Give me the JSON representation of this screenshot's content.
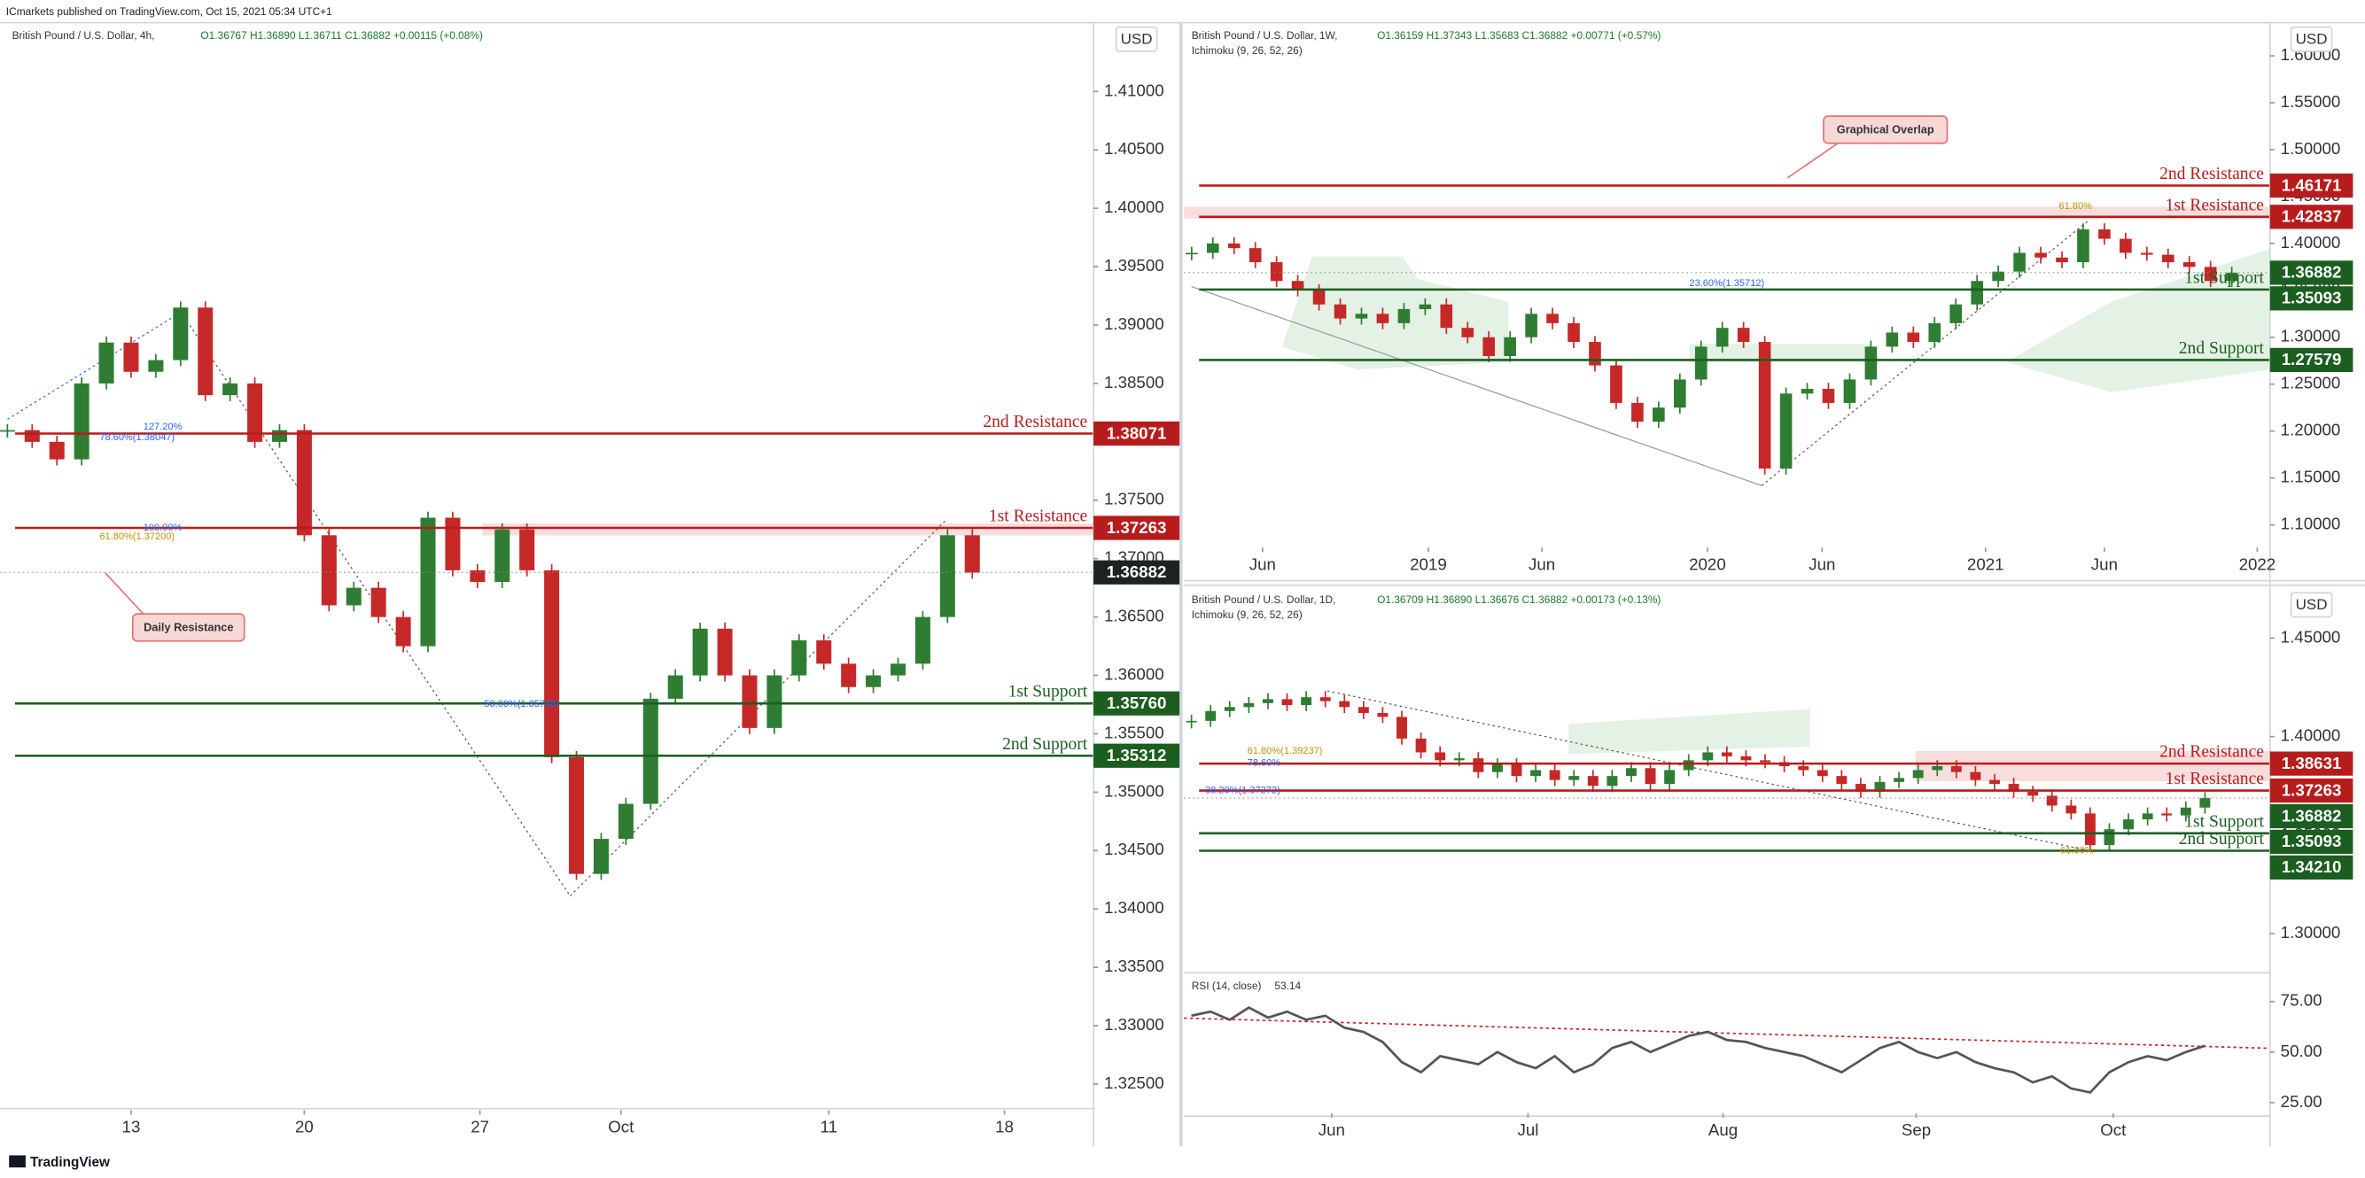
{
  "header": {
    "publisher": "ICmarkets published on TradingView.com, Oct 15, 2021 05:34 UTC+1"
  },
  "footer": {
    "brand": "TradingView"
  },
  "chart_data": [
    {
      "type": "candlestick",
      "title": "British Pound / U.S. Dollar, 4h,",
      "ohlc": "O1.36767 H1.36890 L1.36711 C1.36882 +0.00115 (+0.08%)",
      "currency": "USD",
      "up_color": "#2e7d32",
      "down_color": "#c62828",
      "values": [
        1.381,
        1.38,
        1.3785,
        1.385,
        1.3885,
        1.386,
        1.387,
        1.3915,
        1.384,
        1.385,
        1.38,
        1.381,
        1.372,
        1.366,
        1.3675,
        1.365,
        1.3625,
        1.3735,
        1.369,
        1.368,
        1.3725,
        1.369,
        1.353,
        1.343,
        1.346,
        1.349,
        1.358,
        1.36,
        1.364,
        1.36,
        1.3555,
        1.36,
        1.363,
        1.361,
        1.359,
        1.36,
        1.361,
        1.365,
        1.372,
        1.3688
      ],
      "xlim": [
        -0.3,
        43.9
      ],
      "xticks": [
        {
          "value": 5,
          "label": "13"
        },
        {
          "value": 12,
          "label": "20"
        },
        {
          "value": 19.1,
          "label": "27"
        },
        {
          "value": 24.8,
          "label": "Oct"
        },
        {
          "value": 33.2,
          "label": "11"
        },
        {
          "value": 40.3,
          "label": "18"
        }
      ],
      "ylim": [
        1.3229,
        1.4159
      ],
      "yticks": [
        {
          "value": 1.41,
          "label": "1.41000"
        },
        {
          "value": 1.405,
          "label": "1.40500"
        },
        {
          "value": 1.4,
          "label": "1.40000"
        },
        {
          "value": 1.395,
          "label": "1.39500"
        },
        {
          "value": 1.39,
          "label": "1.39000"
        },
        {
          "value": 1.385,
          "label": "1.38500"
        },
        {
          "value": 1.375,
          "label": "1.37500"
        },
        {
          "value": 1.37,
          "label": "1.37000"
        },
        {
          "value": 1.365,
          "label": "1.36500"
        },
        {
          "value": 1.36,
          "label": "1.36000"
        },
        {
          "value": 1.355,
          "label": "1.35500"
        },
        {
          "value": 1.35,
          "label": "1.35000"
        },
        {
          "value": 1.345,
          "label": "1.34500"
        },
        {
          "value": 1.34,
          "label": "1.34000"
        },
        {
          "value": 1.335,
          "label": "1.33500"
        },
        {
          "value": 1.33,
          "label": "1.33000"
        },
        {
          "value": 1.325,
          "label": "1.32500"
        }
      ],
      "levels": [
        {
          "label": "2nd Resistance",
          "value": 1.38071,
          "price_label": "1.38071",
          "color": "#b71c1c"
        },
        {
          "label": "1st Resistance",
          "value": 1.37263,
          "price_label": "1.37263",
          "color": "#b71c1c"
        },
        {
          "label": "1st Support",
          "value": 1.3576,
          "price_label": "1.35760",
          "color": "#1b5e20"
        },
        {
          "label": "2nd Support",
          "value": 1.35312,
          "price_label": "1.35312",
          "color": "#1b5e20"
        }
      ],
      "last": {
        "value": 1.36882,
        "label": "1.36882",
        "color": "#1c2420"
      },
      "annotations": [
        "127.20%",
        "78.60%(1.38047)",
        "100.00%",
        "61.80%(1.37200)",
        "50.00%(1.35748)",
        "Daily Resistance"
      ]
    },
    {
      "type": "candlestick",
      "title": "British Pound / U.S. Dollar, 1W,",
      "ohlc": "O1.36159 H1.37343 L1.35683 C1.36882 +0.00771 (+0.57%)",
      "indicator": "Ichimoku (9, 26, 52, 26)",
      "currency": "USD",
      "up_color": "#2e7d32",
      "down_color": "#c62828",
      "values": [
        1.39,
        1.4,
        1.395,
        1.38,
        1.36,
        1.35,
        1.335,
        1.32,
        1.325,
        1.315,
        1.33,
        1.335,
        1.31,
        1.3,
        1.28,
        1.3,
        1.325,
        1.315,
        1.295,
        1.27,
        1.23,
        1.21,
        1.225,
        1.255,
        1.29,
        1.31,
        1.295,
        1.16,
        1.24,
        1.245,
        1.23,
        1.255,
        1.29,
        1.305,
        1.295,
        1.315,
        1.335,
        1.36,
        1.37,
        1.39,
        1.385,
        1.38,
        1.415,
        1.405,
        1.39,
        1.388,
        1.38,
        1.375,
        1.36,
        1.3688
      ],
      "xlim": [
        -0.36,
        50.8
      ],
      "xticks": [
        {
          "value": 3.34,
          "label": "Jun"
        },
        {
          "value": 11.15,
          "label": "2019"
        },
        {
          "value": 16.5,
          "label": "Jun"
        },
        {
          "value": 24.3,
          "label": "2020"
        },
        {
          "value": 29.7,
          "label": "Jun"
        },
        {
          "value": 37.4,
          "label": "2021"
        },
        {
          "value": 43,
          "label": "Jun"
        },
        {
          "value": 50.2,
          "label": "2022"
        }
      ],
      "ylim": [
        1.0405,
        1.6354
      ],
      "yticks": [
        {
          "value": 1.6,
          "label": "1.60000"
        },
        {
          "value": 1.55,
          "label": "1.55000"
        },
        {
          "value": 1.5,
          "label": "1.50000"
        },
        {
          "value": 1.45,
          "label": "1.45000"
        },
        {
          "value": 1.4,
          "label": "1.40000"
        },
        {
          "value": 1.35,
          "label": "1.35000"
        },
        {
          "value": 1.3,
          "label": "1.30000"
        },
        {
          "value": 1.25,
          "label": "1.25000"
        },
        {
          "value": 1.2,
          "label": "1.20000"
        },
        {
          "value": 1.15,
          "label": "1.15000"
        },
        {
          "value": 1.1,
          "label": "1.10000"
        }
      ],
      "levels": [
        {
          "label": "2nd Resistance",
          "value": 1.46171,
          "price_label": "1.46171",
          "color": "#b71c1c"
        },
        {
          "label": "1st Resistance",
          "value": 1.42837,
          "price_label": "1.42837",
          "color": "#b71c1c"
        },
        {
          "label": "1st Support",
          "value": 1.35093,
          "price_label": "1.35093",
          "color": "#1b5e20"
        },
        {
          "label": "2nd Support",
          "value": 1.27579,
          "price_label": "1.27579",
          "color": "#1b5e20"
        }
      ],
      "last": {
        "value": 1.36882,
        "label": "1.36882",
        "color": "#1b5e20"
      },
      "annotations": [
        "Graphical Overlap",
        "61.80%",
        "23.60%(1.35712)"
      ]
    },
    {
      "type": "candlestick",
      "title": "British Pound / U.S. Dollar, 1D,",
      "ohlc": "O1.36709 H1.36890 L1.36676 C1.36882 +0.00173 (+0.13%)",
      "indicator": "Ichimoku (9, 26, 52, 26)",
      "currency": "USD",
      "up_color": "#2e7d32",
      "down_color": "#c62828",
      "values": [
        1.408,
        1.413,
        1.415,
        1.417,
        1.419,
        1.416,
        1.42,
        1.418,
        1.415,
        1.412,
        1.41,
        1.399,
        1.392,
        1.388,
        1.389,
        1.382,
        1.386,
        1.38,
        1.383,
        1.378,
        1.38,
        1.375,
        1.38,
        1.384,
        1.376,
        1.383,
        1.388,
        1.392,
        1.39,
        1.388,
        1.387,
        1.385,
        1.383,
        1.38,
        1.376,
        1.372,
        1.377,
        1.379,
        1.383,
        1.385,
        1.382,
        1.378,
        1.376,
        1.372,
        1.37,
        1.365,
        1.361,
        1.345,
        1.353,
        1.358,
        1.361,
        1.36,
        1.364,
        1.3688
      ],
      "xlim": [
        -0.39,
        56.4
      ],
      "xticks": [
        {
          "value": 7.33,
          "label": "Jun"
        },
        {
          "value": 17.6,
          "label": "Jul"
        },
        {
          "value": 27.8,
          "label": "Aug"
        },
        {
          "value": 37.9,
          "label": "Sep"
        },
        {
          "value": 48.2,
          "label": "Oct"
        }
      ],
      "ylim": [
        1.2801,
        1.4753
      ],
      "yticks": [
        {
          "value": 1.45,
          "label": "1.45000"
        },
        {
          "value": 1.4,
          "label": "1.40000"
        },
        {
          "value": 1.35,
          "label": "1.35000"
        },
        {
          "value": 1.3,
          "label": "1.30000"
        }
      ],
      "levels": [
        {
          "label": "2nd Resistance",
          "value": 1.38631,
          "price_label": "1.38631",
          "color": "#b71c1c"
        },
        {
          "label": "1st Resistance",
          "value": 1.37263,
          "price_label": "1.37263",
          "color": "#b71c1c"
        },
        {
          "label": "1st Support",
          "value": 1.35093,
          "price_label": "1.35093",
          "color": "#1b5e20"
        },
        {
          "label": "2nd Support",
          "value": 1.3421,
          "price_label": "1.34210",
          "color": "#1b5e20"
        }
      ],
      "last": {
        "value": 1.36882,
        "label": "1.36882",
        "color": "#1b5e20"
      },
      "annotations": [
        "61.80%(1.39237)",
        "78.60%",
        "38.20%(1.37272)",
        "61.80%"
      ]
    },
    {
      "type": "line",
      "title": "RSI (14, close)",
      "color": "#555555",
      "values": [
        68,
        70,
        66,
        72,
        67,
        70,
        66,
        68,
        62,
        60,
        55,
        45,
        40,
        48,
        46,
        44,
        50,
        45,
        42,
        48,
        40,
        44,
        52,
        55,
        50,
        54,
        58,
        60,
        56,
        55,
        52,
        50,
        48,
        44,
        40,
        46,
        52,
        55,
        50,
        47,
        50,
        45,
        42,
        40,
        35,
        38,
        32,
        30,
        40,
        45,
        48,
        46,
        50,
        53.14
      ],
      "xlim": [
        -0.39,
        56.4
      ],
      "ylim": [
        18.3,
        87.7
      ],
      "yticks": [
        {
          "value": 75,
          "label": "75.00"
        },
        {
          "value": 50,
          "label": "50.00"
        },
        {
          "value": 25,
          "label": "25.00"
        }
      ],
      "last": {
        "value": 53.14
      }
    }
  ]
}
